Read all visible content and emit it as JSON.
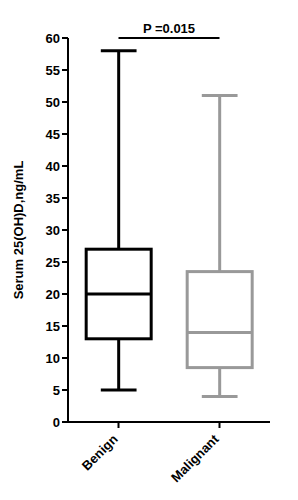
{
  "chart_data": {
    "type": "box",
    "y_label": "Serum 25(OH)D,ng/mL",
    "categories": [
      "Benign",
      "Malignant"
    ],
    "min": [
      5,
      4
    ],
    "q1": [
      13,
      8.5
    ],
    "median": [
      20,
      14
    ],
    "q3": [
      27,
      23.5
    ],
    "max": [
      58,
      51
    ],
    "colors": [
      "#000000",
      "#999999"
    ],
    "ylim": [
      0,
      60
    ],
    "yticks": [
      0,
      5,
      10,
      15,
      20,
      25,
      30,
      35,
      40,
      45,
      50,
      55,
      60
    ],
    "annotations": [
      "P =0.015"
    ],
    "grid": false
  }
}
